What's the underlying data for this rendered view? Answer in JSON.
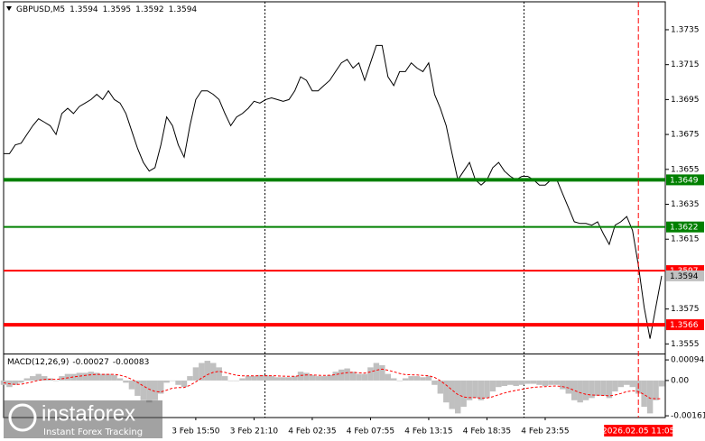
{
  "chart_data": {
    "type": "line",
    "title": "GBPUSD,M5",
    "ohlc": [
      1.3594,
      1.3595,
      1.3592,
      1.3594
    ],
    "categories": [
      null,
      null,
      null,
      null,
      null,
      null,
      null,
      null,
      null,
      null,
      null,
      null,
      null,
      null,
      null,
      null,
      null,
      null,
      null,
      null,
      null,
      null,
      null,
      null,
      null,
      null,
      null,
      null,
      null,
      null,
      null,
      null,
      null,
      "3 Feb 15:50",
      null,
      null,
      null,
      null,
      null,
      null,
      null,
      null,
      null,
      "3 Feb 21:10",
      null,
      null,
      null,
      null,
      null,
      null,
      null,
      null,
      null,
      "4 Feb 02:35",
      null,
      null,
      null,
      null,
      null,
      null,
      null,
      null,
      null,
      "4 Feb 07:55",
      null,
      null,
      null,
      null,
      null,
      null,
      null,
      null,
      null,
      "4 Feb 13:15",
      null,
      null,
      null,
      null,
      null,
      null,
      null,
      null,
      null,
      "4 Feb 18:35",
      null,
      null,
      null,
      null,
      null,
      null,
      null,
      null,
      null,
      "4 Feb 23:55",
      null,
      null,
      null,
      null,
      null,
      null,
      null,
      null,
      null,
      null,
      null,
      null,
      null,
      null,
      null,
      "2026.02.05 11:05",
      null,
      null,
      null,
      null
    ],
    "values": [
      1.3664,
      1.3664,
      1.3669,
      1.367,
      1.3675,
      1.368,
      1.3684,
      1.3682,
      1.368,
      1.3675,
      1.3687,
      1.369,
      1.3687,
      1.3691,
      1.3693,
      1.3695,
      1.3698,
      1.3695,
      1.37,
      1.3695,
      1.3693,
      1.3687,
      1.3677,
      1.3667,
      1.3659,
      1.3654,
      1.3656,
      1.3669,
      1.3685,
      1.368,
      1.3669,
      1.3662,
      1.368,
      1.3695,
      1.37,
      1.37,
      1.3698,
      1.3695,
      1.3687,
      1.368,
      1.3685,
      1.3687,
      1.369,
      1.3694,
      1.3693,
      1.3695,
      1.3696,
      1.3695,
      1.3694,
      1.3695,
      1.37,
      1.3708,
      1.3706,
      1.37,
      1.37,
      1.3703,
      1.3706,
      1.3711,
      1.3716,
      1.3718,
      1.3713,
      1.3716,
      1.3706,
      1.3716,
      1.3726,
      1.3726,
      1.3708,
      1.3703,
      1.3711,
      1.3711,
      1.3716,
      1.3713,
      1.3711,
      1.3716,
      1.3698,
      1.369,
      1.368,
      1.3664,
      1.3649,
      1.3654,
      1.3659,
      1.3649,
      1.3646,
      1.3649,
      1.3656,
      1.3659,
      1.3654,
      1.3651,
      1.3649,
      1.3651,
      1.3651,
      1.3649,
      1.3646,
      1.3646,
      1.3649,
      1.3649,
      1.3641,
      1.3633,
      1.3625,
      1.3624,
      1.3624,
      1.3623,
      1.3625,
      1.3618,
      1.3612,
      1.3623,
      1.3625,
      1.3628,
      1.362,
      1.36,
      1.3576,
      1.3558,
      1.3576,
      1.3594
    ],
    "color": "#000000",
    "last_color": "#c0c0c0",
    "cursor_color": "#ff0000",
    "ylim": [
      1.35495,
      1.3751
    ],
    "yticks": [
      1.3735,
      1.3715,
      1.3695,
      1.3675,
      1.3655,
      1.3635,
      1.3615,
      1.3575,
      1.3555
    ],
    "levels": [
      {
        "value": 1.3649,
        "color": "#008000"
      },
      {
        "value": 1.3622,
        "color": "#008000"
      },
      {
        "value": 1.3597,
        "color": "#ff0000"
      },
      {
        "value": 1.3566,
        "color": "#ff0000"
      }
    ],
    "macd": {
      "type": "bar",
      "title": "MACD(12,26,9)",
      "readings": [
        -0.00027,
        -0.00083
      ],
      "color": "#c0c0c0",
      "values": [
        -0.0002,
        -0.0003,
        -0.0002,
        -0.0001,
        0.0001,
        0.0002,
        0.0003,
        0.0002,
        0.0001,
        0,
        0.0002,
        0.0003,
        0.0003,
        0.00035,
        0.00035,
        0.0004,
        0.00035,
        0.0003,
        0.0003,
        0.00025,
        0.0001,
        -0.0001,
        -0.0004,
        -0.0007,
        -0.0009,
        -0.001,
        -0.0009,
        -0.0006,
        -0.0001,
        0,
        -0.0002,
        -0.0003,
        0.0002,
        0.0006,
        0.0008,
        0.0009,
        0.0008,
        0.0006,
        0.0002,
        0,
        0,
        0.0001,
        0.0002,
        0.0002,
        0.00025,
        0.00025,
        0.0002,
        0.00015,
        0.00015,
        0.00015,
        0.0002,
        0.0004,
        0.00035,
        0.00025,
        0.0002,
        0.0002,
        0.00025,
        0.0004,
        0.0005,
        0.00055,
        0.0004,
        0.0003,
        0.0003,
        0.0006,
        0.0008,
        0.0007,
        0.0003,
        0.0001,
        0,
        0.0001,
        0.0002,
        0.0002,
        0.00015,
        0.0002,
        -0.0002,
        -0.0006,
        -0.001,
        -0.0013,
        -0.0015,
        -0.0012,
        -0.0009,
        -0.0008,
        -0.0009,
        -0.0008,
        -0.0005,
        -0.0003,
        -0.00025,
        -0.0002,
        -0.00025,
        -0.0002,
        -0.00015,
        -0.00015,
        -0.0002,
        -0.00025,
        -0.0002,
        -0.0002,
        -0.0004,
        -0.0006,
        -0.0009,
        -0.001,
        -0.0009,
        -0.0008,
        -0.0007,
        -0.0007,
        -0.0008,
        -0.0005,
        -0.0003,
        -0.0002,
        -0.0003,
        -0.0006,
        -0.0012,
        -0.0015,
        -0.0009,
        -0.00027
      ],
      "signal": {
        "color": "#ff0000",
        "values": [
          -0.0001,
          -0.00015,
          -0.00018,
          -0.00017,
          -0.00012,
          -6e-05,
          1e-05,
          5e-05,
          6e-05,
          5e-05,
          8e-05,
          0.00012,
          0.00016,
          0.0002,
          0.00023,
          0.00026,
          0.00028,
          0.00028,
          0.00028,
          0.00028,
          0.00024,
          0.00017,
          6e-05,
          -9e-05,
          -0.00025,
          -0.0004,
          -0.0005,
          -0.00052,
          -0.00044,
          -0.00035,
          -0.00032,
          -0.00032,
          -0.00022,
          -6e-05,
          0.00011,
          0.00027,
          0.00037,
          0.00042,
          0.00037,
          0.0003,
          0.00024,
          0.00021,
          0.00021,
          0.00021,
          0.00022,
          0.00022,
          0.00022,
          0.00021,
          0.0002,
          0.00019,
          0.00019,
          0.00023,
          0.00025,
          0.00025,
          0.00024,
          0.00023,
          0.00024,
          0.00027,
          0.00032,
          0.00036,
          0.00037,
          0.00035,
          0.00034,
          0.00039,
          0.00047,
          0.00052,
          0.00047,
          0.0004,
          0.00032,
          0.00027,
          0.00026,
          0.00025,
          0.00023,
          0.00022,
          0.00014,
          -1e-05,
          -0.00021,
          -0.00043,
          -0.00064,
          -0.00075,
          -0.00078,
          -0.00078,
          -0.0008,
          -0.0008,
          -0.00074,
          -0.00065,
          -0.00057,
          -0.0005,
          -0.00045,
          -0.0004,
          -0.00035,
          -0.00031,
          -0.00029,
          -0.00028,
          -0.00026,
          -0.00025,
          -0.00028,
          -0.00034,
          -0.00045,
          -0.00056,
          -0.00063,
          -0.00066,
          -0.00067,
          -0.00068,
          -0.0007,
          -0.00066,
          -0.00059,
          -0.00051,
          -0.00047,
          -0.0005,
          -0.00064,
          -0.00081,
          -0.00083,
          -0.00083
        ]
      },
      "ylim": [
        -0.00169,
        0.00119
      ],
      "yticks": [
        0.00094,
        {
          "value": 0,
          "label": "0.00"
        },
        -0.00161
      ]
    }
  },
  "watermark": {
    "brand": "instaforex",
    "tagline": "Instant Forex Tracking"
  }
}
